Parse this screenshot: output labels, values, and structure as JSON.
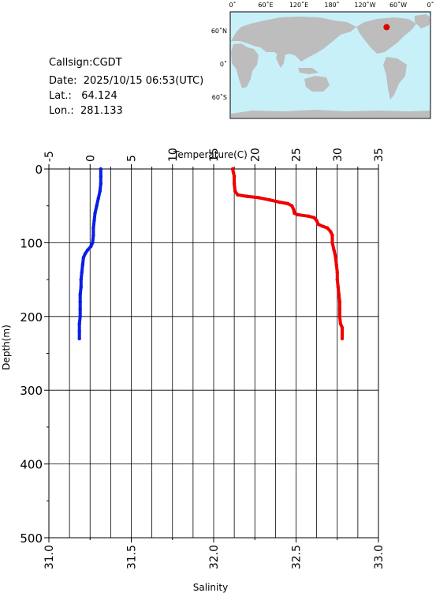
{
  "info": {
    "callsign_label": "Callsign:",
    "callsign": "CGDT",
    "date_label": "Date:",
    "date": "2025/10/15 06:53(UTC)",
    "lat_label": "Lat.:",
    "lat": "64.124",
    "lon_label": "Lon.:",
    "lon": "281.133"
  },
  "map": {
    "top_labels": [
      "0˚",
      "60˚E",
      "120˚E",
      "180˚",
      "120˚W",
      "60˚W",
      "0˚"
    ],
    "left_labels": [
      "60˚N",
      "0˚",
      "60˚S"
    ],
    "ocean_color": "#c8f0f8",
    "land_color": "#bdbdbd",
    "marker_color": "#e00000",
    "marker": {
      "lat": 64.124,
      "lon": 281.133
    }
  },
  "chart_data": {
    "type": "line",
    "ylabel": "Depth(m)",
    "ylim": [
      500,
      0
    ],
    "yticks": [
      0,
      100,
      200,
      300,
      400,
      500
    ],
    "top_axis": {
      "label": "Temperature(C)",
      "range": [
        -5,
        35
      ],
      "ticks": [
        -5,
        0,
        5,
        10,
        15,
        20,
        25,
        30,
        35
      ]
    },
    "bottom_axis": {
      "label": "Salinity",
      "range": [
        31.0,
        33.0
      ],
      "ticks": [
        "31.0",
        "31.5",
        "32.0",
        "32.5",
        "33.0"
      ]
    },
    "grid": true,
    "series": [
      {
        "axis": "top",
        "color": "#0a1ee6",
        "points": [
          [
            1.3,
            0
          ],
          [
            1.3,
            10
          ],
          [
            1.3,
            20
          ],
          [
            1.2,
            30
          ],
          [
            1.0,
            40
          ],
          [
            0.8,
            50
          ],
          [
            0.6,
            60
          ],
          [
            0.5,
            70
          ],
          [
            0.4,
            80
          ],
          [
            0.4,
            90
          ],
          [
            0.3,
            100
          ],
          [
            0.1,
            105
          ],
          [
            -0.3,
            110
          ],
          [
            -0.6,
            115
          ],
          [
            -0.8,
            120
          ],
          [
            -0.9,
            130
          ],
          [
            -1.0,
            140
          ],
          [
            -1.1,
            150
          ],
          [
            -1.1,
            160
          ],
          [
            -1.2,
            170
          ],
          [
            -1.2,
            180
          ],
          [
            -1.2,
            190
          ],
          [
            -1.2,
            200
          ],
          [
            -1.3,
            210
          ],
          [
            -1.3,
            220
          ],
          [
            -1.3,
            230
          ]
        ]
      },
      {
        "axis": "top",
        "color": "#f00000",
        "points": [
          [
            17.3,
            0
          ],
          [
            17.4,
            5
          ],
          [
            17.5,
            10
          ],
          [
            17.5,
            20
          ],
          [
            17.6,
            30
          ],
          [
            17.9,
            35
          ],
          [
            19.0,
            37
          ],
          [
            20.5,
            39
          ],
          [
            21.8,
            42
          ],
          [
            23.0,
            45
          ],
          [
            24.0,
            47
          ],
          [
            24.5,
            50
          ],
          [
            24.7,
            55
          ],
          [
            24.8,
            60
          ],
          [
            25.2,
            62
          ],
          [
            26.5,
            64
          ],
          [
            27.2,
            66
          ],
          [
            27.5,
            70
          ],
          [
            27.7,
            75
          ],
          [
            28.3,
            78
          ],
          [
            28.8,
            80
          ],
          [
            29.2,
            85
          ],
          [
            29.4,
            90
          ],
          [
            29.4,
            100
          ],
          [
            29.6,
            110
          ],
          [
            29.8,
            120
          ],
          [
            29.9,
            130
          ],
          [
            30.0,
            140
          ],
          [
            30.0,
            150
          ],
          [
            30.1,
            160
          ],
          [
            30.2,
            170
          ],
          [
            30.3,
            180
          ],
          [
            30.3,
            190
          ],
          [
            30.3,
            200
          ],
          [
            30.4,
            210
          ],
          [
            30.6,
            215
          ],
          [
            30.6,
            220
          ],
          [
            30.6,
            230
          ]
        ]
      }
    ]
  }
}
